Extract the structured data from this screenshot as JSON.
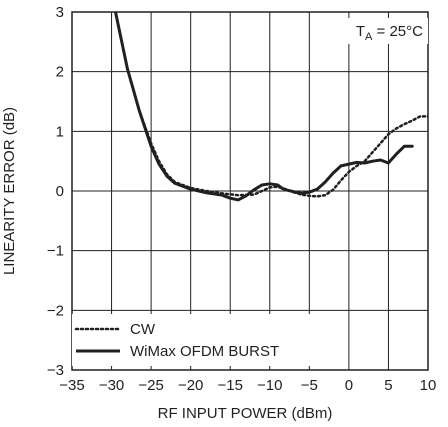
{
  "chart_data": {
    "type": "line",
    "title": "",
    "xlabel": "RF INPUT POWER (dBm)",
    "ylabel": "LINEARITY ERROR (dB)",
    "xlim": [
      -35,
      10
    ],
    "ylim": [
      -3,
      3
    ],
    "xticks": [
      -35,
      -30,
      -25,
      -20,
      -15,
      -10,
      -5,
      0,
      5,
      10
    ],
    "yticks": [
      -3,
      -2,
      -1,
      0,
      1,
      2,
      3
    ],
    "xtick_labels": [
      "−35",
      "−30",
      "−25",
      "−20",
      "−15",
      "−10",
      "−5",
      "0",
      "5",
      "10"
    ],
    "ytick_labels": [
      "−3",
      "−2",
      "−1",
      "0",
      "1",
      "2",
      "3"
    ],
    "grid": true,
    "legend_position": "bottom-left",
    "series": [
      {
        "name": "CW",
        "style": "dotted",
        "color": "#231f20",
        "x": [
          -29.5,
          -28,
          -26.5,
          -25,
          -24,
          -23,
          -22,
          -20,
          -18,
          -16,
          -14,
          -12,
          -11,
          -10,
          -9,
          -8,
          -7,
          -6,
          -5,
          -4,
          -3,
          -2,
          -1,
          0,
          1,
          2,
          3,
          4,
          5,
          6,
          7,
          8,
          9,
          10
        ],
        "y": [
          3.0,
          2.05,
          1.35,
          0.8,
          0.5,
          0.28,
          0.15,
          0.05,
          0.0,
          -0.04,
          -0.07,
          -0.06,
          0.0,
          0.06,
          0.07,
          0.03,
          -0.02,
          -0.06,
          -0.08,
          -0.09,
          -0.07,
          0.02,
          0.18,
          0.32,
          0.42,
          0.5,
          0.65,
          0.8,
          0.95,
          1.05,
          1.12,
          1.18,
          1.25,
          1.25
        ]
      },
      {
        "name": "WiMax OFDM BURST",
        "style": "solid",
        "color": "#231f20",
        "x": [
          -29.5,
          -28,
          -26.5,
          -25,
          -24,
          -23,
          -22,
          -20,
          -18,
          -16,
          -15,
          -14,
          -13,
          -12,
          -11,
          -10,
          -9,
          -8.5,
          -8,
          -7,
          -6,
          -5,
          -4,
          -3,
          -2,
          -1,
          0,
          1,
          2,
          3,
          4,
          5,
          6,
          7,
          8
        ],
        "y": [
          3.0,
          2.05,
          1.35,
          0.75,
          0.45,
          0.25,
          0.13,
          0.03,
          -0.03,
          -0.07,
          -0.12,
          -0.15,
          -0.08,
          0.02,
          0.1,
          0.12,
          0.1,
          0.05,
          0.02,
          -0.01,
          -0.04,
          -0.02,
          0.03,
          0.15,
          0.3,
          0.42,
          0.45,
          0.48,
          0.47,
          0.5,
          0.52,
          0.47,
          0.62,
          0.75,
          0.75
        ]
      }
    ]
  },
  "annotation": {
    "prefix": "T",
    "subscript": "A",
    "suffix": " = 25°C"
  }
}
